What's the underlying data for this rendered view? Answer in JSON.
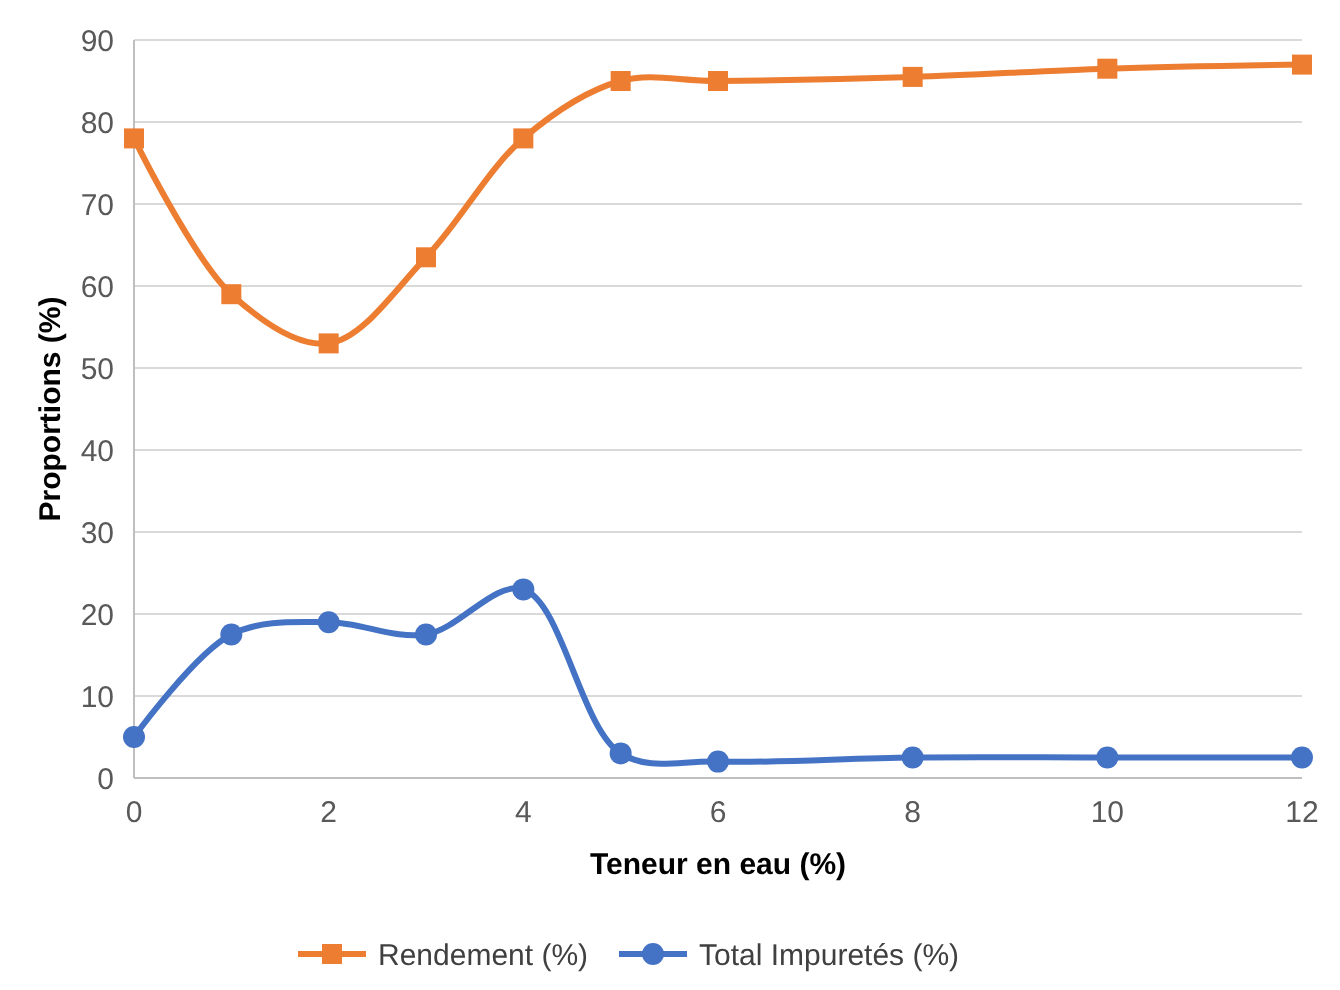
{
  "chart_data": {
    "type": "line",
    "xlabel": "Teneur en eau (%)",
    "ylabel": "Proportions (%)",
    "x": [
      0,
      1,
      2,
      3,
      4,
      5,
      6,
      8,
      10,
      12
    ],
    "xlim": [
      0,
      12
    ],
    "xticks": [
      0,
      2,
      4,
      6,
      8,
      10,
      12
    ],
    "ylim": [
      0,
      90
    ],
    "yticks": [
      0,
      10,
      20,
      30,
      40,
      50,
      60,
      70,
      80,
      90
    ],
    "grid": "y",
    "legend": "bottom",
    "line_style": "solid",
    "series": [
      {
        "name": "Rendement (%)",
        "color": "#ed7d31",
        "marker": "square",
        "values": [
          78,
          59,
          53,
          63.5,
          78,
          85,
          85,
          85.5,
          86.5,
          87
        ]
      },
      {
        "name": "Total Impuretés (%)",
        "color": "#4472c4",
        "marker": "circle",
        "values": [
          5,
          17.5,
          19,
          17.5,
          23,
          3,
          2,
          2.5,
          2.5,
          2.5
        ]
      }
    ]
  }
}
